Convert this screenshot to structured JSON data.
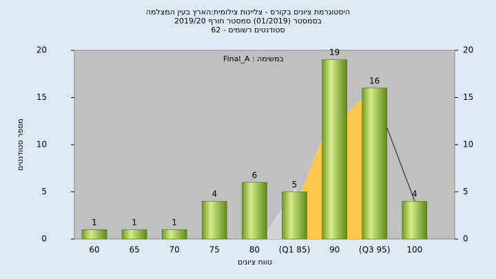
{
  "chart_data": {
    "type": "bar",
    "title": "היסטוגרמת ציונים בקורס - צליינות צילומית:הארץ בעין המצלמה",
    "subtitle": "בסמסטר  (01/2019)  סמסטר חורף 2019/20",
    "subtitle2": "סטודנטים רשומים - 62",
    "annotation": "Final_A : במשימה",
    "x_label": "טווח ציונים",
    "y_label": "מספר סטודנטים",
    "categories": [
      "60",
      "65",
      "70",
      "75",
      "80",
      "(Q1 85)",
      "90",
      "(Q3 95)",
      "100"
    ],
    "values": [
      1,
      1,
      1,
      4,
      6,
      5,
      19,
      16,
      4
    ],
    "color": "#9cc43c",
    "ylim": [
      0,
      20
    ],
    "yticks": [
      0,
      5,
      10,
      15,
      20
    ],
    "grid": false
  }
}
